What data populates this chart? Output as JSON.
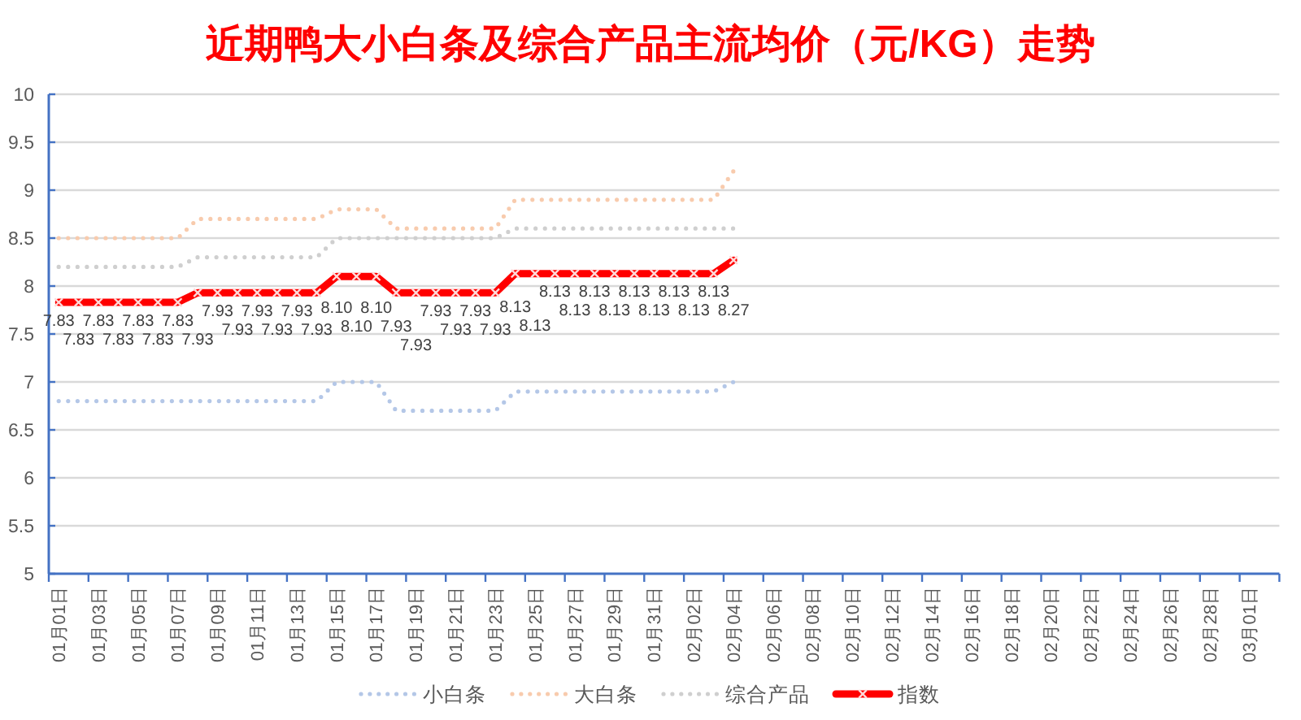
{
  "chart_data": {
    "type": "line",
    "title": "近期鸭大小白条及综合产品主流均价（元/KG）走势",
    "categories": [
      "01月01日",
      null,
      "01月03日",
      null,
      "01月05日",
      null,
      "01月07日",
      null,
      "01月09日",
      null,
      "01月11日",
      null,
      "01月13日",
      null,
      "01月15日",
      null,
      "01月17日",
      null,
      "01月19日",
      null,
      "01月21日",
      null,
      "01月23日",
      null,
      "01月25日",
      null,
      "01月27日",
      null,
      "01月29日",
      null,
      "01月31日",
      null,
      "02月02日",
      null,
      "02月04日",
      null,
      "02月06日",
      null,
      "02月08日",
      null,
      "02月10日",
      null,
      "02月12日",
      null,
      "02月14日",
      null,
      "02月16日",
      null,
      "02月18日",
      null,
      "02月20日",
      null,
      "02月22日",
      null,
      "02月24日",
      null,
      "02月26日",
      null,
      "02月28日",
      null,
      "03月01日",
      null
    ],
    "ylim": [
      5,
      10
    ],
    "yticks": [
      5,
      5.5,
      6,
      6.5,
      7,
      7.5,
      8,
      8.5,
      9,
      9.5,
      10
    ],
    "grid": "y",
    "legend": "bottom",
    "series": [
      {
        "name": "小白条",
        "color": "#b4c7e7",
        "line_style": "dotted",
        "marker": "none",
        "values": [
          6.8,
          6.8,
          6.8,
          6.8,
          6.8,
          6.8,
          6.8,
          6.8,
          6.8,
          6.8,
          6.8,
          6.8,
          6.8,
          6.8,
          7.0,
          7.0,
          7.0,
          6.7,
          6.7,
          6.7,
          6.7,
          6.7,
          6.7,
          6.9,
          6.9,
          6.9,
          6.9,
          6.9,
          6.9,
          6.9,
          6.9,
          6.9,
          6.9,
          6.9,
          7.0,
          null,
          null,
          null,
          null,
          null,
          null,
          null,
          null,
          null,
          null,
          null,
          null,
          null,
          null,
          null,
          null,
          null,
          null,
          null,
          null,
          null,
          null,
          null,
          null,
          null,
          null,
          null
        ]
      },
      {
        "name": "大白条",
        "color": "#f8cbad",
        "line_style": "dotted",
        "marker": "none",
        "values": [
          8.5,
          8.5,
          8.5,
          8.5,
          8.5,
          8.5,
          8.5,
          8.7,
          8.7,
          8.7,
          8.7,
          8.7,
          8.7,
          8.7,
          8.8,
          8.8,
          8.8,
          8.6,
          8.6,
          8.6,
          8.6,
          8.6,
          8.6,
          8.9,
          8.9,
          8.9,
          8.9,
          8.9,
          8.9,
          8.9,
          8.9,
          8.9,
          8.9,
          8.9,
          9.2,
          null,
          null,
          null,
          null,
          null,
          null,
          null,
          null,
          null,
          null,
          null,
          null,
          null,
          null,
          null,
          null,
          null,
          null,
          null,
          null,
          null,
          null,
          null,
          null,
          null,
          null,
          null
        ]
      },
      {
        "name": "综合产品",
        "color": "#cfcfcf",
        "line_style": "dotted",
        "marker": "none",
        "values": [
          8.2,
          8.2,
          8.2,
          8.2,
          8.2,
          8.2,
          8.2,
          8.3,
          8.3,
          8.3,
          8.3,
          8.3,
          8.3,
          8.3,
          8.5,
          8.5,
          8.5,
          8.5,
          8.5,
          8.5,
          8.5,
          8.5,
          8.5,
          8.6,
          8.6,
          8.6,
          8.6,
          8.6,
          8.6,
          8.6,
          8.6,
          8.6,
          8.6,
          8.6,
          8.6,
          null,
          null,
          null,
          null,
          null,
          null,
          null,
          null,
          null,
          null,
          null,
          null,
          null,
          null,
          null,
          null,
          null,
          null,
          null,
          null,
          null,
          null,
          null,
          null,
          null,
          null,
          null
        ]
      },
      {
        "name": "指数",
        "color": "#ff0000",
        "line_style": "solid",
        "marker": "cross",
        "values": [
          7.83,
          7.83,
          7.83,
          7.83,
          7.83,
          7.83,
          7.83,
          7.93,
          7.93,
          7.93,
          7.93,
          7.93,
          7.93,
          7.93,
          8.1,
          8.1,
          8.1,
          7.93,
          7.93,
          7.93,
          7.93,
          7.93,
          7.93,
          8.13,
          8.13,
          8.13,
          8.13,
          8.13,
          8.13,
          8.13,
          8.13,
          8.13,
          8.13,
          8.13,
          8.27,
          null,
          null,
          null,
          null,
          null,
          null,
          null,
          null,
          null,
          null,
          null,
          null,
          null,
          null,
          null,
          null,
          null,
          null,
          null,
          null,
          null,
          null,
          null,
          null,
          null,
          null,
          null
        ],
        "value_labels": [
          "7.83",
          "7.83",
          "7.83",
          "7.83",
          "7.83",
          "7.83",
          "7.83",
          "7.93",
          "7.93",
          "7.93",
          "7.93",
          "7.93",
          "7.93",
          "7.93",
          "8.10",
          "8.10",
          "8.10",
          "7.93",
          "7.93",
          "7.93",
          "7.93",
          "7.93",
          "7.93",
          "8.13",
          "8.13",
          "8.13",
          "8.13",
          "8.13",
          "8.13",
          "8.13",
          "8.13",
          "8.13",
          "8.13",
          "8.13",
          "8.27",
          null,
          null,
          null,
          null,
          null,
          null,
          null,
          null,
          null,
          null,
          null,
          null,
          null,
          null,
          null,
          null,
          null,
          null,
          null,
          null,
          null,
          null,
          null,
          null,
          null,
          null,
          null
        ]
      }
    ]
  }
}
